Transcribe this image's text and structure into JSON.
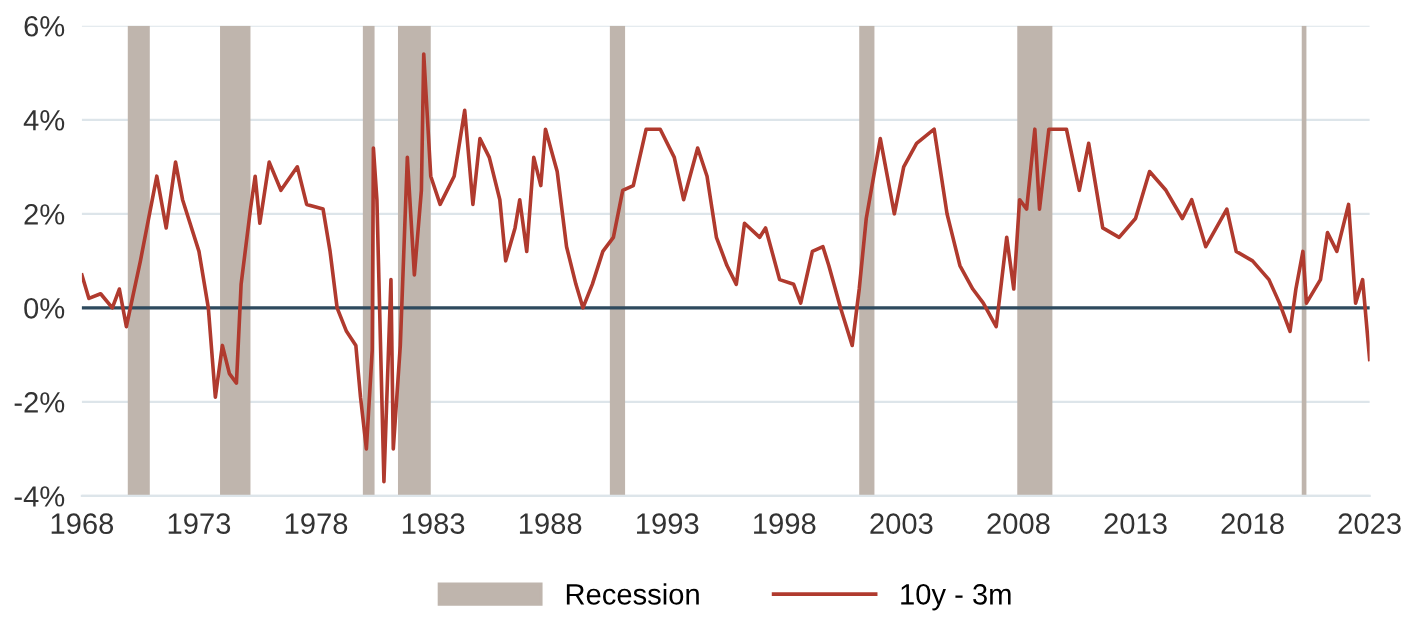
{
  "chart_data": {
    "type": "line",
    "xlim": [
      1968,
      2023
    ],
    "xticks": [
      1968,
      1973,
      1978,
      1983,
      1988,
      1993,
      1998,
      2003,
      2008,
      2013,
      2018,
      2023
    ],
    "ylim": [
      -4,
      6
    ],
    "yticks": [
      {
        "value": -4,
        "label": "-4%"
      },
      {
        "value": -2,
        "label": "-2%"
      },
      {
        "value": 0,
        "label": "0%"
      },
      {
        "value": 2,
        "label": "2%"
      },
      {
        "value": 4,
        "label": "4%"
      },
      {
        "value": 6,
        "label": "6%"
      }
    ],
    "grid": "y",
    "legend": "bottom",
    "line_style": "solid",
    "marker": "none",
    "ref_lines": [
      {
        "axis": "y",
        "value": 0,
        "label": null,
        "color": "#2e4a5e",
        "line_style": "solid"
      }
    ],
    "bands": [
      {
        "axis": "x",
        "from": 1969.96,
        "to": 1970.9,
        "label": "Recession",
        "color": "#bfb5ad"
      },
      {
        "axis": "x",
        "from": 1973.9,
        "to": 1975.2,
        "label": null,
        "color": "#bfb5ad"
      },
      {
        "axis": "x",
        "from": 1980.0,
        "to": 1980.5,
        "label": null,
        "color": "#bfb5ad"
      },
      {
        "axis": "x",
        "from": 1981.5,
        "to": 1982.9,
        "label": null,
        "color": "#bfb5ad"
      },
      {
        "axis": "x",
        "from": 1990.55,
        "to": 1991.2,
        "label": null,
        "color": "#bfb5ad"
      },
      {
        "axis": "x",
        "from": 2001.2,
        "to": 2001.85,
        "label": null,
        "color": "#bfb5ad"
      },
      {
        "axis": "x",
        "from": 2007.95,
        "to": 2009.45,
        "label": null,
        "color": "#bfb5ad"
      },
      {
        "axis": "x",
        "from": 2020.1,
        "to": 2020.3,
        "label": null,
        "color": "#bfb5ad"
      }
    ],
    "series": [
      {
        "name": "10y - 3m",
        "color": "#b03a2e",
        "x": [
          1968.0,
          1968.3,
          1968.8,
          1969.3,
          1969.6,
          1969.9,
          1970.2,
          1970.5,
          1971.2,
          1971.6,
          1972.0,
          1972.3,
          1973.0,
          1973.4,
          1973.7,
          1974.0,
          1974.3,
          1974.6,
          1974.8,
          1975.2,
          1975.4,
          1975.6,
          1976.0,
          1976.5,
          1977.2,
          1977.6,
          1978.3,
          1978.6,
          1978.9,
          1979.3,
          1979.7,
          1979.9,
          1980.15,
          1980.4,
          1980.45,
          1980.6,
          1980.9,
          1981.2,
          1981.3,
          1981.6,
          1981.9,
          1982.2,
          1982.5,
          1982.6,
          1982.9,
          1983.3,
          1983.9,
          1984.35,
          1984.7,
          1985.0,
          1985.4,
          1985.85,
          1986.1,
          1986.5,
          1986.7,
          1987.0,
          1987.3,
          1987.6,
          1987.8,
          1988.3,
          1988.7,
          1989.1,
          1989.4,
          1989.8,
          1990.25,
          1990.7,
          1991.1,
          1991.55,
          1992.1,
          1992.7,
          1993.3,
          1993.7,
          1994.3,
          1994.7,
          1995.1,
          1995.55,
          1995.95,
          1996.3,
          1996.95,
          1997.2,
          1997.8,
          1998.4,
          1998.7,
          1999.2,
          1999.65,
          1999.9,
          2000.4,
          2000.9,
          2001.2,
          2001.5,
          2002.1,
          2002.7,
          2003.1,
          2003.65,
          2004.4,
          2004.95,
          2005.1,
          2005.5,
          2006.05,
          2006.5,
          2007.05,
          2007.5,
          2007.8,
          2008.05,
          2008.35,
          2008.7,
          2008.9,
          2009.3,
          2010.05,
          2010.6,
          2011.0,
          2011.6,
          2012.3,
          2013.0,
          2013.6,
          2014.3,
          2015.0,
          2015.4,
          2016.0,
          2016.9,
          2017.3,
          2018.0,
          2018.7,
          2019.15,
          2019.6,
          2019.85,
          2020.15,
          2020.3,
          2020.9,
          2021.2,
          2021.6,
          2022.1,
          2022.4,
          2022.7,
          2023.0
        ],
        "values": [
          0.7,
          0.2,
          0.3,
          0.0,
          0.4,
          -0.4,
          0.3,
          1.0,
          2.8,
          1.7,
          3.1,
          2.3,
          1.2,
          0.0,
          -1.9,
          -0.8,
          -1.4,
          -1.6,
          0.5,
          2.1,
          2.8,
          1.8,
          3.1,
          2.5,
          3.0,
          2.2,
          2.1,
          1.2,
          0.0,
          -0.5,
          -0.8,
          -1.9,
          -3.0,
          -0.9,
          3.4,
          2.3,
          -3.7,
          0.6,
          -3.0,
          -0.8,
          3.2,
          0.7,
          2.5,
          5.4,
          2.8,
          2.2,
          2.8,
          4.2,
          2.2,
          3.6,
          3.2,
          2.3,
          1.0,
          1.7,
          2.3,
          1.2,
          3.2,
          2.6,
          3.8,
          2.9,
          1.3,
          0.5,
          0.0,
          0.5,
          1.2,
          1.5,
          2.5,
          2.6,
          3.8,
          3.8,
          3.2,
          2.3,
          3.4,
          2.8,
          1.5,
          0.9,
          0.5,
          1.8,
          1.5,
          1.7,
          0.6,
          0.5,
          0.1,
          1.2,
          1.3,
          0.9,
          0.0,
          -0.8,
          0.4,
          1.9,
          3.6,
          2.0,
          3.0,
          3.5,
          3.8,
          2.0,
          1.7,
          0.9,
          0.4,
          0.1,
          -0.4,
          1.5,
          0.4,
          2.3,
          2.1,
          3.8,
          2.1,
          3.8,
          3.8,
          2.5,
          3.5,
          1.7,
          1.5,
          1.9,
          2.9,
          2.5,
          1.9,
          2.3,
          1.3,
          2.1,
          1.2,
          1.0,
          0.6,
          0.1,
          -0.5,
          0.4,
          1.2,
          0.1,
          0.6,
          1.6,
          1.2,
          2.2,
          0.1,
          0.6,
          -1.1
        ]
      }
    ]
  }
}
